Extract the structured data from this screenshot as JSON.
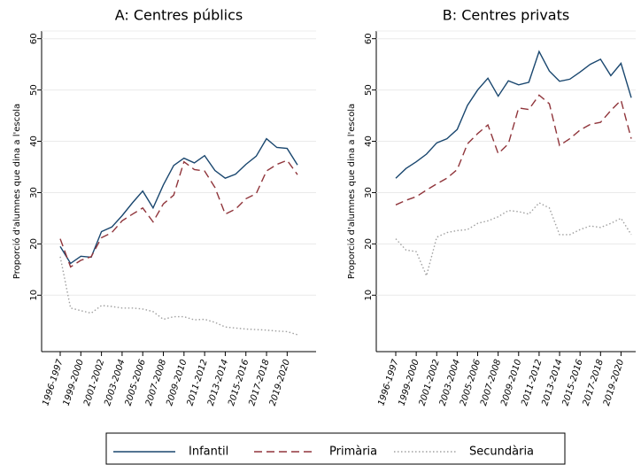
{
  "chart_data": [
    {
      "type": "line",
      "title": "A: Centres públics",
      "ylabel": "Proporció d'alumnes que dina a l'escola",
      "categories": [
        "1996-1997",
        null,
        "1999-2000",
        null,
        "2001-2002",
        null,
        "2003-2004",
        null,
        "2005-2006",
        null,
        "2007-2008",
        null,
        "2009-2010",
        null,
        "2011-2012",
        null,
        "2013-2014",
        null,
        "2015-2016",
        null,
        "2017-2018",
        null,
        "2019-2020",
        null
      ],
      "ylim": [
        -1,
        61.5
      ],
      "yticks": [
        10,
        20,
        30,
        40,
        50,
        60
      ],
      "series": [
        {
          "name": "Infantil",
          "color": "#1a476f",
          "dash": "solid",
          "values": [
            19.5,
            16.2,
            17.6,
            17.4,
            22.4,
            23.3,
            25.5,
            28,
            30.3,
            27,
            31.5,
            35.3,
            36.7,
            35.8,
            37.2,
            34.3,
            32.8,
            33.6,
            35.5,
            37.1,
            40.5,
            38.8,
            38.6,
            35.4
          ]
        },
        {
          "name": "Primària",
          "color": "#90353b",
          "dash": "dashed",
          "values": [
            21,
            15.5,
            16.8,
            17.5,
            21.2,
            22.2,
            24.5,
            25.8,
            27,
            24.3,
            27.8,
            29.5,
            36,
            34.5,
            34.2,
            31,
            25.8,
            26.8,
            28.8,
            29.8,
            34.2,
            35.5,
            36.3,
            33.5
          ]
        },
        {
          "name": "Secundària",
          "color": "#a0a0a0",
          "dash": "dotted",
          "values": [
            17.5,
            7.5,
            7,
            6.5,
            8,
            7.8,
            7.5,
            7.5,
            7.3,
            6.8,
            5.3,
            5.8,
            5.8,
            5.2,
            5.3,
            4.7,
            3.8,
            3.6,
            3.4,
            3.3,
            3.2,
            3,
            2.9,
            2.3
          ]
        }
      ]
    },
    {
      "type": "line",
      "title": "B: Centres privats",
      "ylabel": "Proporció d'alumnes que dina a l'escola",
      "categories": [
        "1996-1997",
        null,
        "1999-2000",
        null,
        "2001-2002",
        null,
        "2003-2004",
        null,
        "2005-2006",
        null,
        "2007-2008",
        null,
        "2009-2010",
        null,
        "2011-2012",
        null,
        "2013-2014",
        null,
        "2015-2016",
        null,
        "2017-2018",
        null,
        "2019-2020",
        null
      ],
      "ylim": [
        -1,
        61.5
      ],
      "yticks": [
        10,
        20,
        30,
        40,
        50,
        60
      ],
      "series": [
        {
          "color": "#1a476f",
          "dash": "solid",
          "values": [
            32.8,
            34.7,
            36,
            37.5,
            39.7,
            40.5,
            42.3,
            47,
            50,
            52.3,
            48.8,
            51.8,
            51,
            51.5,
            57.5,
            53.7,
            51.7,
            52.1,
            53.5,
            55,
            56,
            52.8,
            55.2,
            48.5
          ]
        },
        {
          "color": "#90353b",
          "dash": "dashed",
          "values": [
            27.6,
            28.5,
            29.2,
            30.5,
            31.7,
            32.8,
            34.5,
            39.5,
            41.5,
            43.2,
            37.6,
            39.5,
            46.5,
            46.2,
            49,
            47.3,
            39.2,
            40.5,
            42.2,
            43.3,
            43.7,
            46,
            48,
            40.5
          ]
        },
        {
          "color": "#a0a0a0",
          "dash": "dotted",
          "values": [
            21,
            18.8,
            18.5,
            13.8,
            21.3,
            22.2,
            22.6,
            22.8,
            24,
            24.5,
            25.3,
            26.5,
            26.3,
            25.8,
            28,
            27,
            21.8,
            21.8,
            22.8,
            23.5,
            23.2,
            24,
            25,
            21.8
          ]
        }
      ]
    }
  ]
}
